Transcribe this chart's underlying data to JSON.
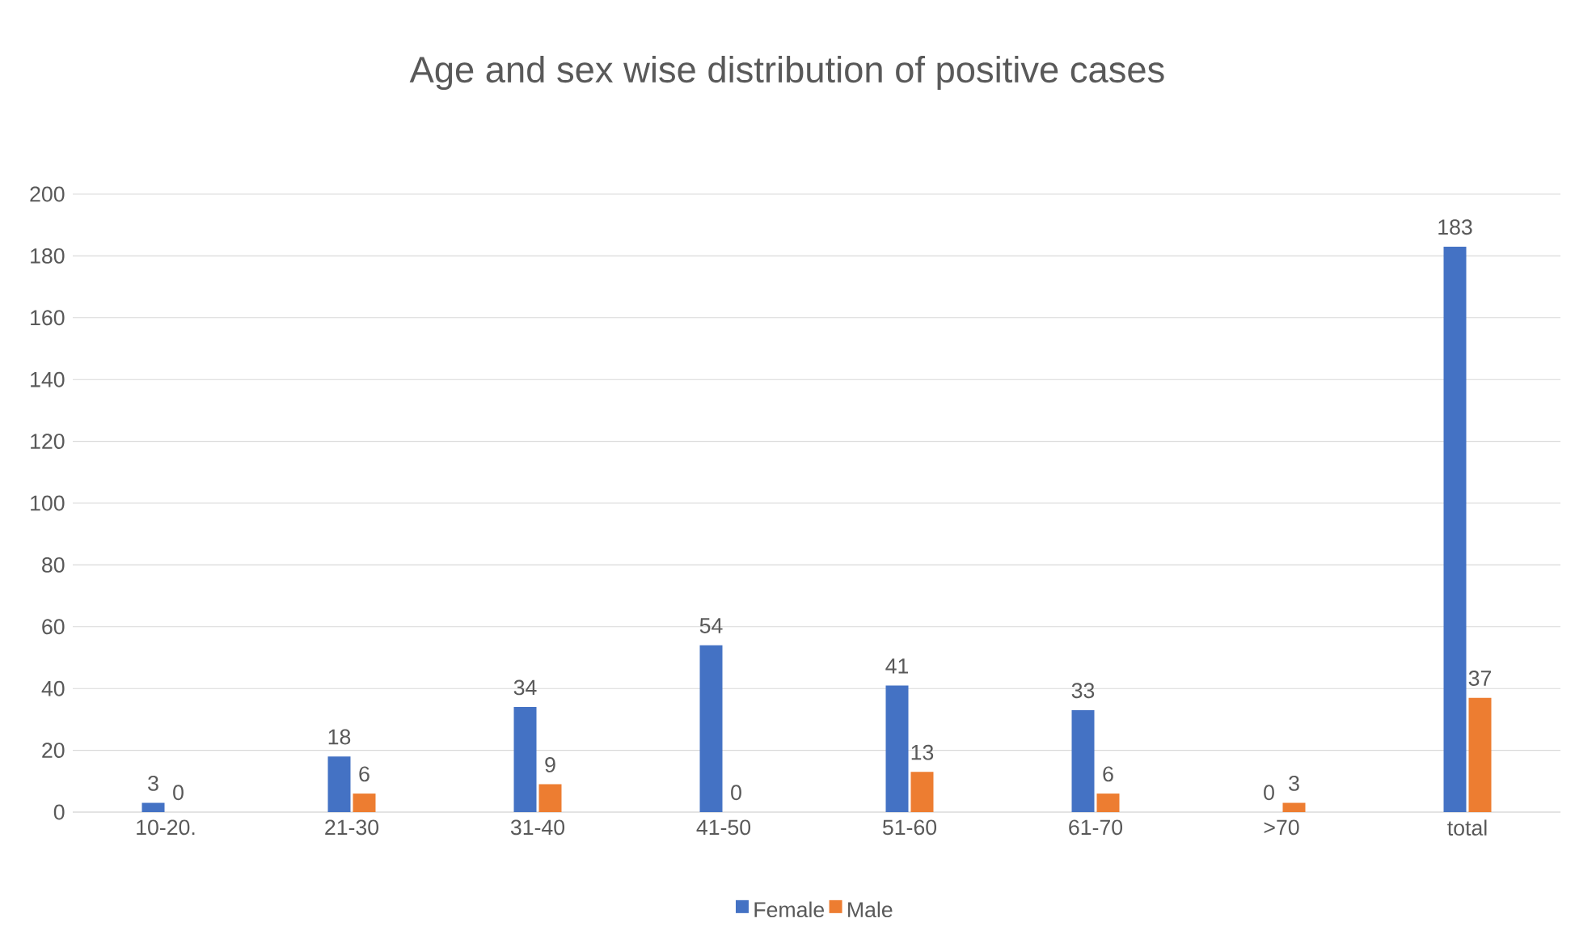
{
  "chart_data": {
    "type": "bar",
    "title": "Age and sex wise distribution of positive cases",
    "categories": [
      "10-20.",
      "21-30",
      "31-40",
      "41-50",
      "51-60",
      "61-70",
      ">70",
      "total"
    ],
    "series": [
      {
        "name": "Female",
        "color": "#4472c4",
        "values": [
          3,
          18,
          34,
          54,
          41,
          33,
          0,
          183
        ]
      },
      {
        "name": "Male",
        "color": "#ed7d31",
        "values": [
          0,
          6,
          9,
          0,
          13,
          6,
          3,
          37
        ]
      }
    ],
    "ylim": [
      0,
      200
    ],
    "yticks": [
      0,
      20,
      40,
      60,
      80,
      100,
      120,
      140,
      160,
      180,
      200
    ],
    "grid": "y",
    "legend": "bottom",
    "data_labels": true
  }
}
